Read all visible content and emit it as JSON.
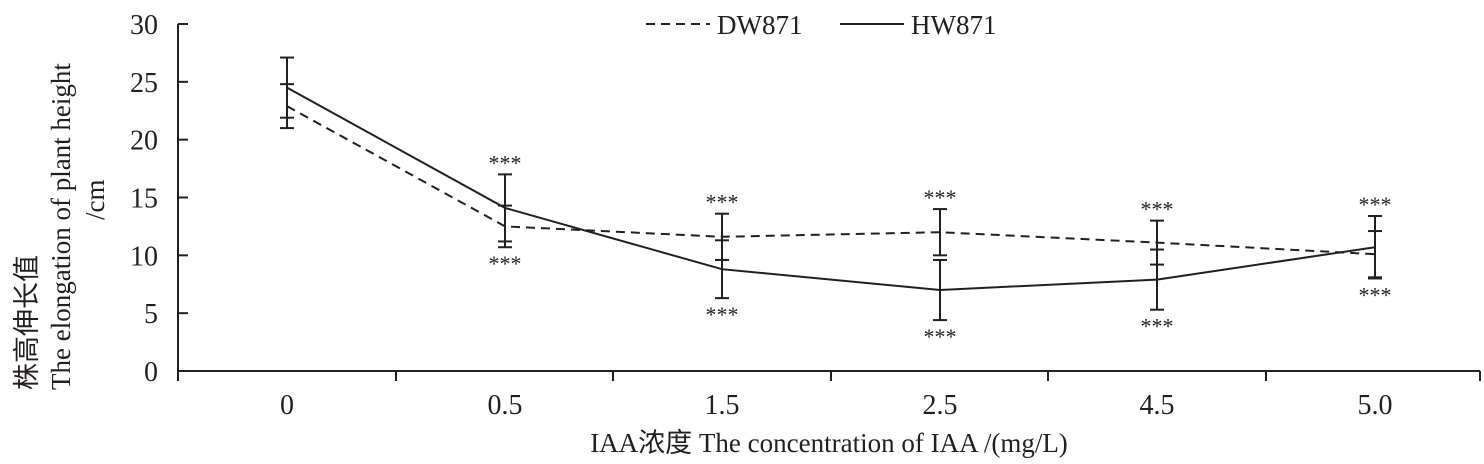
{
  "chart_data": {
    "type": "line",
    "categories": [
      "0",
      "0.5",
      "1.5",
      "2.5",
      "4.5",
      "5.0"
    ],
    "xlabel": "IAA浓度 The concentration of IAA /(mg/L)",
    "ylabel_cn": "株高伸长值",
    "ylabel_en": "The elongation of plant height",
    "ylabel_unit": "/cm",
    "ylim": [
      0,
      30
    ],
    "yticks": [
      "0",
      "5",
      "10",
      "15",
      "20",
      "25",
      "30"
    ],
    "grid": false,
    "legend_position": "top-center",
    "series": [
      {
        "name": "DW871",
        "style": "dashed",
        "values": [
          22.9,
          12.5,
          11.6,
          12.0,
          11.1,
          10.1
        ],
        "error": [
          1.9,
          1.8,
          2.0,
          2.0,
          1.9,
          2.0
        ],
        "significance": [
          "",
          "***",
          "***",
          "***",
          "***",
          "***"
        ]
      },
      {
        "name": "HW871",
        "style": "solid",
        "values": [
          24.5,
          14.1,
          8.8,
          7.0,
          7.9,
          10.7
        ],
        "error": [
          2.6,
          2.9,
          2.5,
          2.6,
          2.6,
          2.7
        ],
        "significance": [
          "",
          "***",
          "***",
          "***",
          "***",
          "***"
        ]
      }
    ]
  }
}
